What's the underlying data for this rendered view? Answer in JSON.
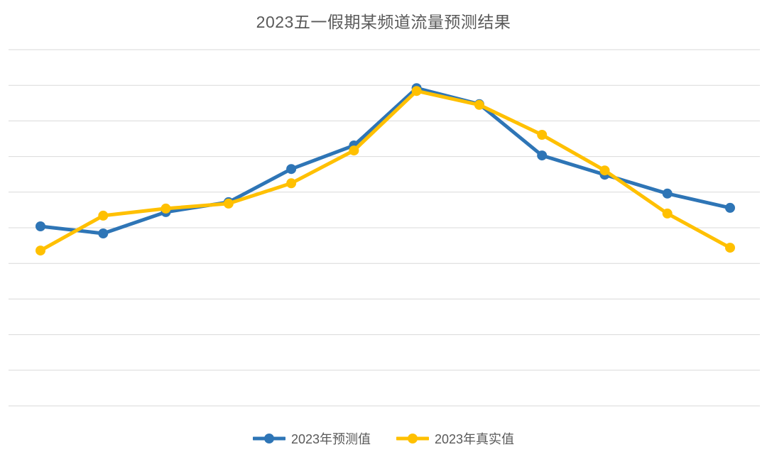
{
  "chart_data": {
    "type": "line",
    "title": "2023五一假期某频道流量预测结果",
    "x": [
      1,
      2,
      3,
      4,
      5,
      6,
      7,
      8,
      9,
      10,
      11,
      12
    ],
    "x_tick_labels_visible": false,
    "y_tick_labels_visible": false,
    "ylim": [
      0,
      10
    ],
    "gridline_count": 11,
    "grid": "horizontal",
    "legend_position": "bottom",
    "values_note": "y values estimated in gridline units (axis has no visible tick labels)",
    "series": [
      {
        "name": "2023年预测值",
        "color": "#2E75B6",
        "values": [
          5.04,
          4.84,
          5.44,
          5.72,
          6.65,
          7.31,
          8.92,
          8.47,
          7.03,
          6.49,
          5.96,
          5.56
        ]
      },
      {
        "name": "2023年真实值",
        "color": "#FFC000",
        "values": [
          4.36,
          5.34,
          5.54,
          5.68,
          6.25,
          7.17,
          8.84,
          8.45,
          7.61,
          6.61,
          5.4,
          4.44
        ]
      }
    ]
  },
  "colors": {
    "title_text": "#595959",
    "legend_text": "#595959",
    "gridline": "#D9D9D9",
    "background": "#FFFFFF"
  }
}
